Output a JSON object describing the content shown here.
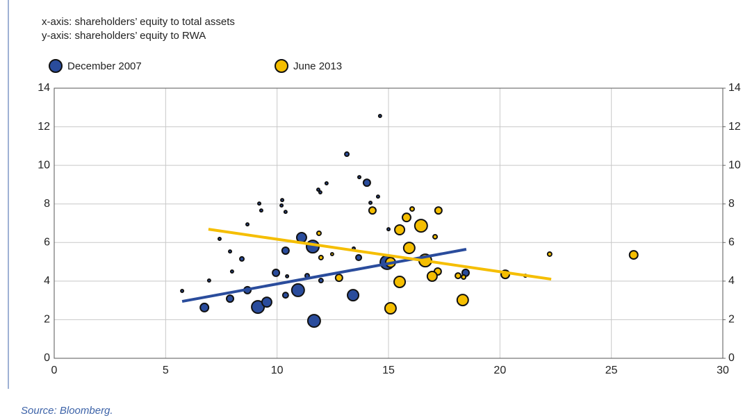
{
  "chart_data": {
    "type": "scatter",
    "notes": [
      "x-axis: shareholders’ equity to total assets",
      "y-axis: shareholders’ equity to RWA"
    ],
    "source": "Source: Bloomberg.",
    "xlim": [
      0,
      30
    ],
    "xticks": [
      0,
      5,
      10,
      15,
      20,
      25,
      30
    ],
    "ylim": [
      0,
      14
    ],
    "yticks": [
      0,
      2,
      4,
      6,
      8,
      10,
      12,
      14
    ],
    "y2lim": [
      0,
      14
    ],
    "y2ticks": [
      0,
      2,
      4,
      6,
      8,
      10,
      12,
      14
    ],
    "grid": true,
    "series": [
      {
        "name": "December 2007",
        "color": "#2a4c9c",
        "x": [
          5.74,
          6.95,
          6.74,
          7.42,
          7.89,
          7.89,
          7.98,
          8.42,
          8.67,
          8.67,
          9.2,
          9.29,
          9.14,
          9.54,
          9.95,
          10.23,
          10.2,
          10.38,
          10.38,
          10.38,
          10.45,
          10.94,
          11.1,
          11.35,
          11.6,
          11.66,
          11.85,
          11.94,
          11.97,
          12.22,
          13.13,
          13.44,
          13.41,
          13.66,
          13.69,
          14.03,
          14.19,
          14.53,
          14.62,
          15.0,
          14.94,
          16.65,
          18.46,
          21.14
        ],
        "y": [
          3.49,
          4.03,
          2.63,
          6.19,
          3.09,
          5.54,
          4.5,
          5.15,
          6.94,
          3.53,
          8.02,
          7.66,
          2.66,
          2.91,
          4.43,
          8.2,
          7.92,
          7.59,
          5.58,
          3.27,
          4.25,
          3.53,
          6.26,
          4.28,
          5.79,
          1.94,
          8.74,
          8.6,
          4.03,
          9.07,
          10.58,
          5.69,
          3.27,
          5.22,
          9.39,
          9.1,
          8.06,
          8.38,
          12.56,
          6.69,
          4.97,
          5.07,
          4.43,
          4.28
        ],
        "sizes": [
          2,
          2,
          6,
          2,
          5,
          2,
          2,
          3,
          2,
          5,
          2,
          2,
          9,
          7,
          5,
          2,
          2,
          2,
          5,
          4,
          2,
          9,
          7,
          3,
          9,
          9,
          2,
          2,
          3,
          2,
          3,
          2,
          8,
          4,
          2,
          5,
          2,
          2,
          2,
          2,
          10,
          8,
          5,
          2
        ],
        "trend": {
          "x": [
            5.74,
            18.49
          ],
          "y": [
            2.95,
            5.65
          ]
        }
      },
      {
        "name": "June 2013",
        "color": "#f5be00",
        "x": [
          11.88,
          11.97,
          12.47,
          12.78,
          14.28,
          15.09,
          15.5,
          15.81,
          16.06,
          15.93,
          15.5,
          15.09,
          16.46,
          16.65,
          17.09,
          17.24,
          17.21,
          16.96,
          18.12,
          18.37,
          18.33,
          20.24,
          22.23,
          26.0
        ],
        "y": [
          6.48,
          5.22,
          5.4,
          4.17,
          7.66,
          4.97,
          6.66,
          7.3,
          7.74,
          5.72,
          3.96,
          2.59,
          6.87,
          5.07,
          6.3,
          7.66,
          4.5,
          4.25,
          4.28,
          4.21,
          3.02,
          4.35,
          5.4,
          5.36
        ],
        "sizes": [
          3,
          3,
          2,
          5,
          5,
          7,
          7,
          6,
          3,
          8,
          8,
          8,
          9,
          9,
          3,
          5,
          5,
          7,
          4,
          3,
          8,
          6,
          3,
          6
        ],
        "trend": {
          "x": [
            6.92,
            22.3
          ],
          "y": [
            6.69,
            4.1
          ]
        }
      }
    ]
  }
}
